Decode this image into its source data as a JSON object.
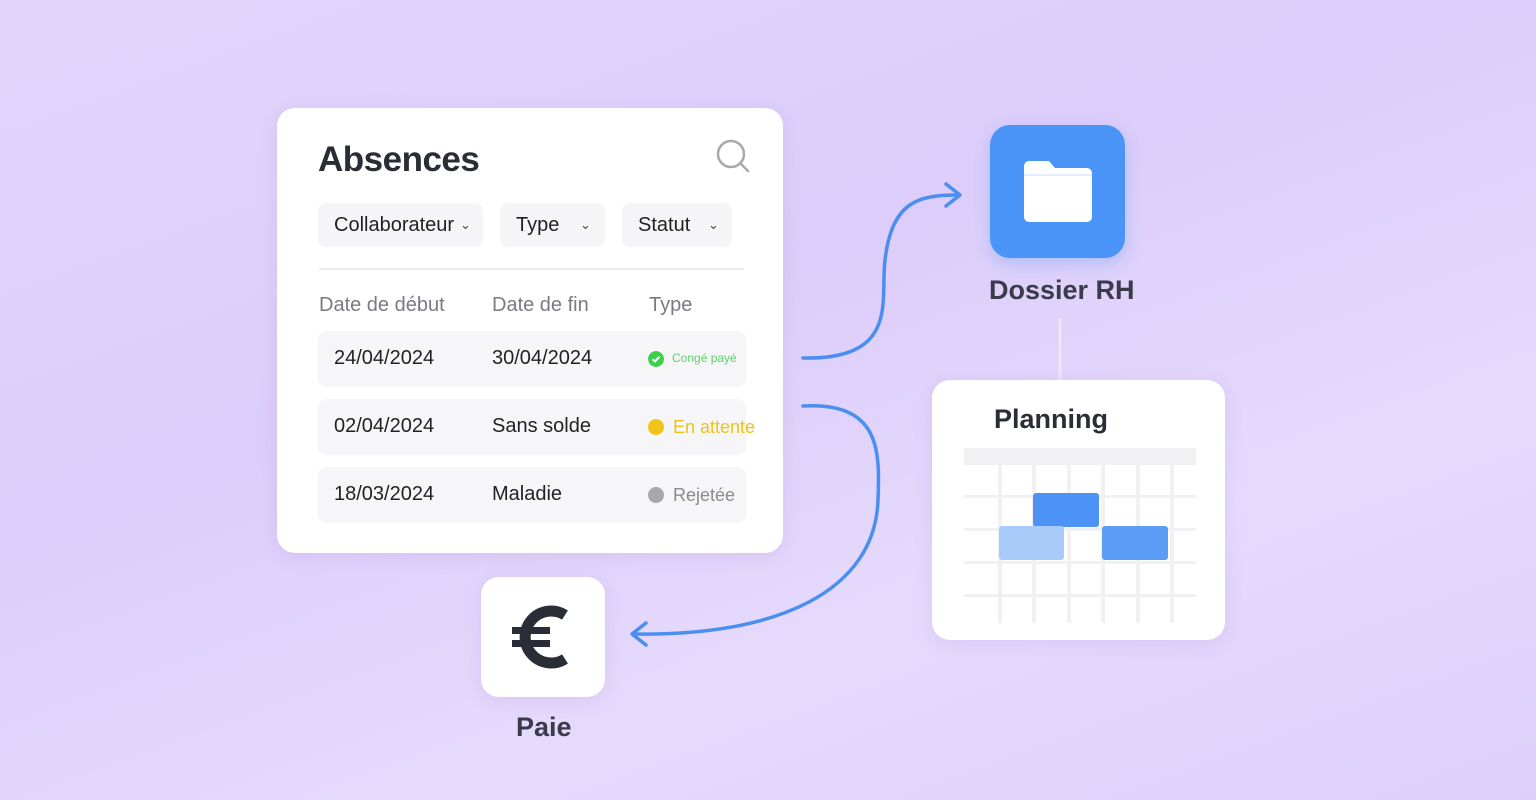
{
  "absences": {
    "title": "Absences",
    "filters": [
      {
        "label": "Collaborateur"
      },
      {
        "label": "Type"
      },
      {
        "label": "Statut"
      }
    ],
    "columns": [
      "Date de début",
      "Date de fin",
      "Type"
    ],
    "rows": [
      {
        "start": "24/04/2024",
        "end": "30/04/2024",
        "status": "Congé payé",
        "status_color": "#3ecf4a"
      },
      {
        "start": "02/04/2024",
        "end": "Sans solde",
        "status": "En attente",
        "status_color": "#f0c419"
      },
      {
        "start": "18/03/2024",
        "end": "Maladie",
        "status": "Rejetée",
        "status_color": "#a8a8ac"
      }
    ]
  },
  "dossier": {
    "label": "Dossier RH",
    "icon": "folder-icon",
    "color": "#4a94f7"
  },
  "planning": {
    "title": "Planning"
  },
  "paie": {
    "label": "Paie",
    "icon": "euro-icon"
  },
  "accent": "#4a8ff0"
}
